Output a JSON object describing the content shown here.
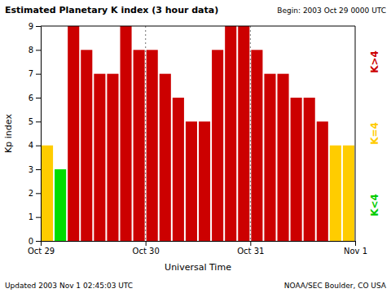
{
  "chart_data": {
    "type": "bar",
    "title": "Estimated Planetary K index (3 hour data)",
    "subtitle": "Begin:  2003 Oct 29 0000 UTC",
    "annotations": [
      "Updated 2003 Nov  1 02:45:03 UTC",
      "NOAA/SEC Boulder, CO USA"
    ],
    "x_label": "Universal Time",
    "y_label": "Kp index",
    "bins": [
      0,
      1,
      2,
      3,
      4,
      5,
      6,
      7,
      8,
      9,
      10,
      11,
      12,
      13,
      14,
      15,
      16,
      17,
      18,
      19,
      20,
      21,
      22,
      23,
      24
    ],
    "values": [
      4,
      3,
      9,
      8,
      7,
      7,
      9,
      8,
      8,
      7,
      6,
      5,
      5,
      8,
      9,
      9,
      8,
      7,
      7,
      6,
      6,
      5,
      4,
      4
    ],
    "colors": [
      "#ffcc00",
      "#00dd00",
      "#cc0000",
      "#cc0000",
      "#cc0000",
      "#cc0000",
      "#cc0000",
      "#cc0000",
      "#cc0000",
      "#cc0000",
      "#cc0000",
      "#cc0000",
      "#cc0000",
      "#cc0000",
      "#cc0000",
      "#cc0000",
      "#cc0000",
      "#cc0000",
      "#cc0000",
      "#cc0000",
      "#cc0000",
      "#cc0000",
      "#ffcc00",
      "#ffcc00"
    ],
    "color_key": [
      {
        "label": "K>4",
        "color": "#cc0000"
      },
      {
        "label": "K=4",
        "color": "#ffcc00"
      },
      {
        "label": "K<4",
        "color": "#00cc00"
      }
    ],
    "vlines": [
      8,
      16
    ],
    "xlim": [
      0,
      24
    ],
    "xticks": [
      {
        "value": 0,
        "label": "Oct 29"
      },
      {
        "value": 8,
        "label": "Oct 30"
      },
      {
        "value": 16,
        "label": "Oct 31"
      },
      {
        "value": 24,
        "label": "Nov 1"
      }
    ],
    "ylim": [
      0,
      9
    ],
    "yticks": [
      0,
      1,
      2,
      3,
      4,
      5,
      6,
      7,
      8,
      9
    ],
    "grid": false
  }
}
